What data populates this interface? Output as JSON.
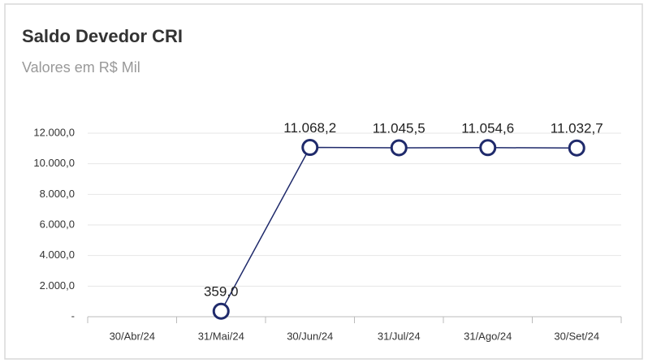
{
  "chart_data": {
    "type": "line",
    "title": "Saldo Devedor CRI",
    "subtitle": "Valores em R$ Mil",
    "categories": [
      "30/Abr/24",
      "31/Mai/24",
      "30/Jun/24",
      "31/Jul/24",
      "31/Ago/24",
      "30/Set/24"
    ],
    "series": [
      {
        "name": "Saldo Devedor CRI",
        "color": "#1f2a6b",
        "values": [
          null,
          359.0,
          11068.2,
          11045.5,
          11054.6,
          11032.7
        ],
        "value_labels": [
          null,
          "359,0",
          "11.068,2",
          "11.045,5",
          "11.054,6",
          "11.032,7"
        ]
      }
    ],
    "ylim": [
      0,
      12000
    ],
    "yticks": [
      {
        "value": 0,
        "label": "-"
      },
      {
        "value": 2000,
        "label": "2.000,0"
      },
      {
        "value": 4000,
        "label": "4.000,0"
      },
      {
        "value": 6000,
        "label": "6.000,0"
      },
      {
        "value": 8000,
        "label": "8.000,0"
      },
      {
        "value": 10000,
        "label": "10.000,0"
      },
      {
        "value": 12000,
        "label": "12.000,0"
      }
    ],
    "grid": true
  }
}
